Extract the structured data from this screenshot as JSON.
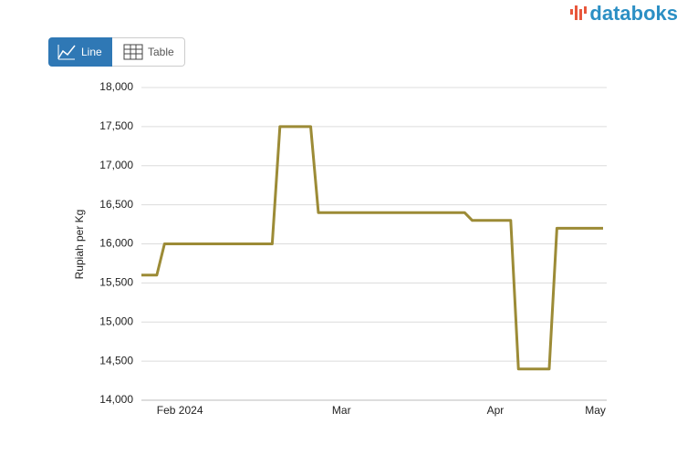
{
  "ui": {
    "buttons": [
      "Line",
      "Table"
    ],
    "logo": "databoks"
  },
  "chart_data": {
    "type": "line",
    "y_label": "Rupiah per Kg",
    "categories": [
      null,
      null,
      null,
      null,
      null,
      "Feb 2024",
      null,
      null,
      null,
      null,
      null,
      null,
      null,
      null,
      null,
      null,
      null,
      null,
      null,
      null,
      null,
      null,
      null,
      null,
      null,
      null,
      "Mar",
      null,
      null,
      null,
      null,
      null,
      null,
      null,
      null,
      null,
      null,
      null,
      null,
      null,
      null,
      null,
      null,
      null,
      null,
      null,
      "Apr",
      null,
      null,
      null,
      null,
      null,
      null,
      null,
      null,
      null,
      null,
      null,
      null,
      "May",
      null
    ],
    "series": [
      {
        "name": "Rupiah per Kg",
        "color": "#9c8b36",
        "values": [
          15600,
          15600,
          15600,
          16000,
          16000,
          16000,
          16000,
          16000,
          16000,
          16000,
          16000,
          16000,
          16000,
          16000,
          16000,
          16000,
          16000,
          16000,
          17500,
          17500,
          17500,
          17500,
          17500,
          16400,
          16400,
          16400,
          16400,
          16400,
          16400,
          16400,
          16400,
          16400,
          16400,
          16400,
          16400,
          16400,
          16400,
          16400,
          16400,
          16400,
          16400,
          16400,
          16400,
          16300,
          16300,
          16300,
          16300,
          16300,
          16300,
          14400,
          14400,
          14400,
          14400,
          14400,
          16200,
          16200,
          16200,
          16200,
          16200,
          16200,
          16200
        ]
      }
    ],
    "ylim": [
      14000,
      18000
    ],
    "yticks": [
      {
        "value": 14000,
        "label": "14,000"
      },
      {
        "value": 14500,
        "label": "14,500"
      },
      {
        "value": 15000,
        "label": "15,000"
      },
      {
        "value": 15500,
        "label": "15,500"
      },
      {
        "value": 16000,
        "label": "16,000"
      },
      {
        "value": 16500,
        "label": "16,500"
      },
      {
        "value": 17000,
        "label": "17,000"
      },
      {
        "value": 17500,
        "label": "17,500"
      },
      {
        "value": 18000,
        "label": "18,000"
      }
    ],
    "grid": true
  }
}
